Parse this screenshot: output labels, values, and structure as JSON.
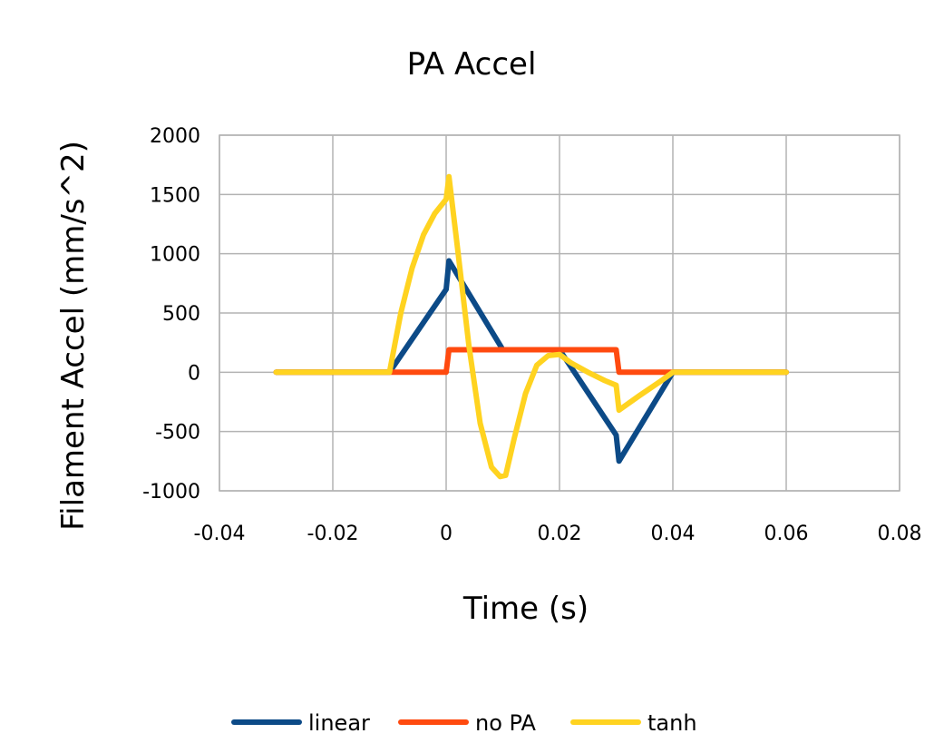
{
  "chart_data": {
    "type": "line",
    "title": "PA Accel",
    "xlabel": "Time (s)",
    "ylabel": "Filament Accel (mm/s^2)",
    "xlim": [
      -0.04,
      0.08
    ],
    "ylim": [
      -1000,
      2000
    ],
    "xticks": [
      -0.04,
      -0.02,
      0,
      0.02,
      0.04,
      0.06,
      0.08
    ],
    "xtick_labels": [
      "-0.04",
      "-0.02",
      "0",
      "0.02",
      "0.04",
      "0.06",
      "0.08"
    ],
    "yticks": [
      -1000,
      -500,
      0,
      500,
      1000,
      1500,
      2000
    ],
    "ytick_labels": [
      "-1000",
      "-500",
      "0",
      "500",
      "1000",
      "1500",
      "2000"
    ],
    "grid": true,
    "legend_position": "bottom",
    "series": [
      {
        "name": "linear",
        "color": "#0C4A87",
        "points": [
          [
            -0.03,
            0
          ],
          [
            -0.01,
            0
          ],
          [
            0.0,
            700
          ],
          [
            0.0005,
            940
          ],
          [
            0.01,
            190
          ],
          [
            0.02,
            190
          ],
          [
            0.03,
            -530
          ],
          [
            0.0305,
            -750
          ],
          [
            0.04,
            0
          ],
          [
            0.06,
            0
          ]
        ]
      },
      {
        "name": "no PA",
        "color": "#FF4A0F",
        "points": [
          [
            -0.03,
            0
          ],
          [
            0.0,
            0
          ],
          [
            0.0005,
            190
          ],
          [
            0.03,
            190
          ],
          [
            0.0305,
            0
          ],
          [
            0.06,
            0
          ]
        ]
      },
      {
        "name": "tanh",
        "color": "#FFD320",
        "points": [
          [
            -0.03,
            0
          ],
          [
            -0.01,
            0
          ],
          [
            -0.008,
            500
          ],
          [
            -0.006,
            880
          ],
          [
            -0.004,
            1160
          ],
          [
            -0.002,
            1340
          ],
          [
            0.0,
            1460
          ],
          [
            0.0005,
            1650
          ],
          [
            0.002,
            1050
          ],
          [
            0.004,
            230
          ],
          [
            0.006,
            -430
          ],
          [
            0.008,
            -800
          ],
          [
            0.0095,
            -880
          ],
          [
            0.0105,
            -870
          ],
          [
            0.012,
            -560
          ],
          [
            0.014,
            -180
          ],
          [
            0.016,
            60
          ],
          [
            0.018,
            140
          ],
          [
            0.02,
            150
          ],
          [
            0.022,
            80
          ],
          [
            0.025,
            0
          ],
          [
            0.028,
            -70
          ],
          [
            0.03,
            -110
          ],
          [
            0.0305,
            -320
          ],
          [
            0.034,
            -200
          ],
          [
            0.038,
            -70
          ],
          [
            0.04,
            0
          ],
          [
            0.06,
            0
          ]
        ]
      }
    ]
  }
}
